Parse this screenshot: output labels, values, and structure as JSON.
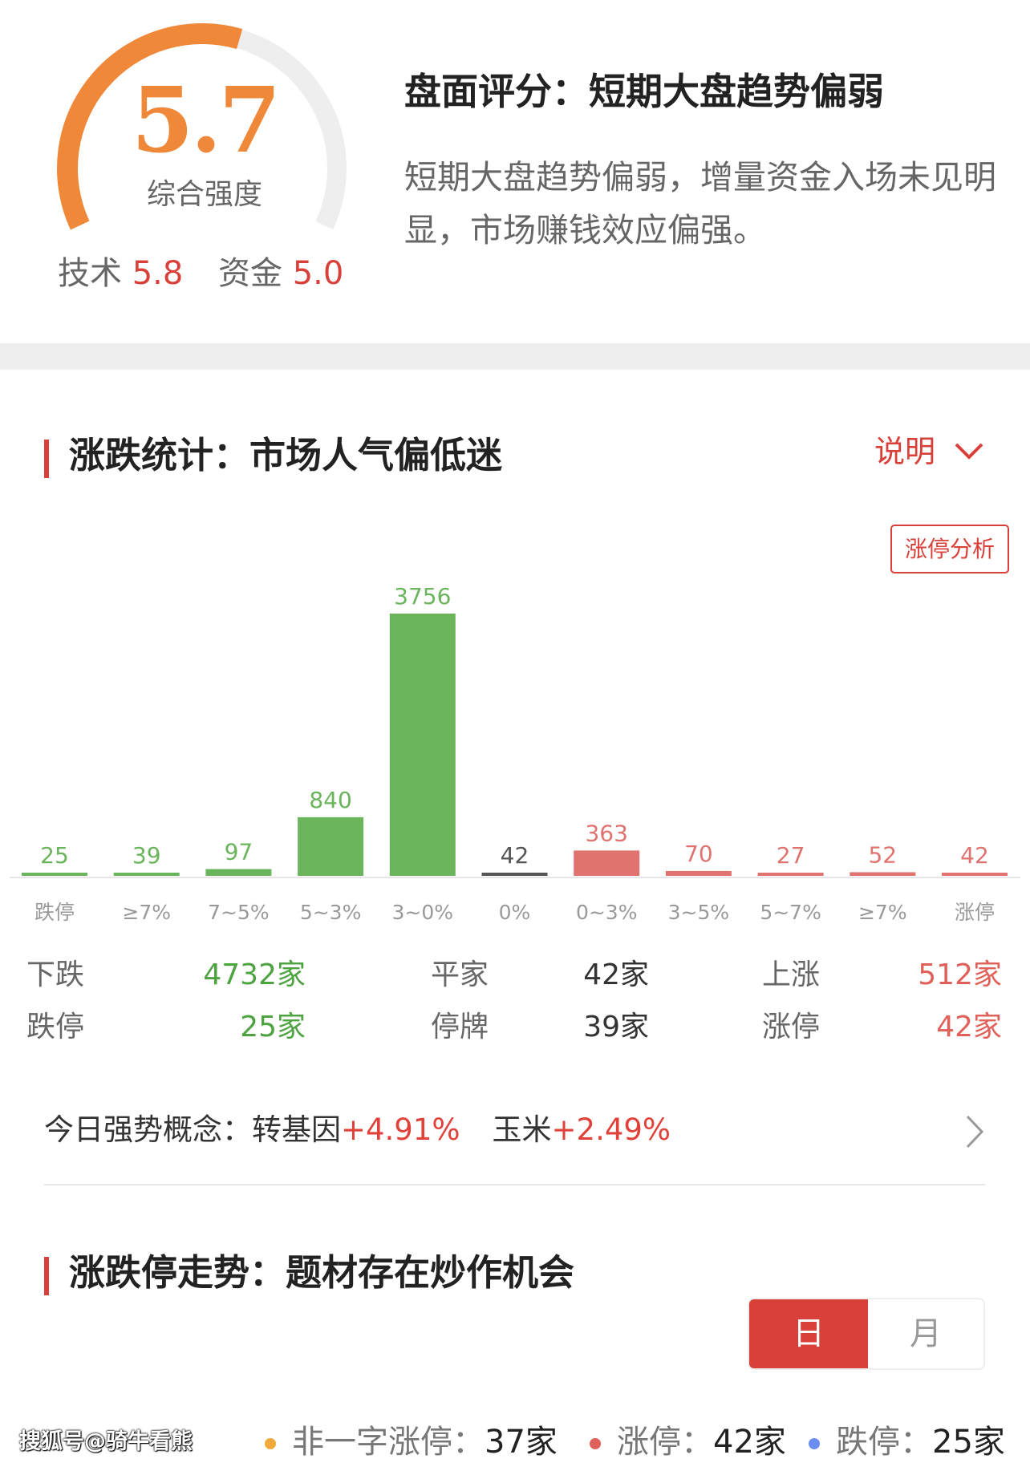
{
  "score": {
    "value": "5.7",
    "label": "综合强度",
    "level": 5.7,
    "max": 10,
    "tech_label": "技术",
    "tech_value": "5.8",
    "fund_label": "资金",
    "fund_value": "5.0",
    "arc_color": "#f0883a",
    "track_color": "#eeeeee"
  },
  "summary": {
    "title": "盘面评分：短期大盘趋势偏弱",
    "description": "短期大盘趋势偏弱，增量资金入场未见明显，市场赚钱效应偏强。"
  },
  "section1": {
    "title": "涨跌统计：市场人气偏低迷",
    "explain_label": "说明",
    "limit_analysis_label": "涨停分析"
  },
  "chart_data": {
    "type": "bar",
    "categories": [
      "跌停",
      "≥7%",
      "7~5%",
      "5~3%",
      "3~0%",
      "0%",
      "0~3%",
      "3~5%",
      "5~7%",
      "≥7%",
      "涨停"
    ],
    "values": [
      25,
      39,
      97,
      840,
      3756,
      42,
      363,
      70,
      27,
      52,
      42
    ],
    "colors": [
      "#6ab55b",
      "#6ab55b",
      "#6ab55b",
      "#6ab55b",
      "#6ab55b",
      "#555555",
      "#e07370",
      "#e07370",
      "#e07370",
      "#e07370",
      "#e07370"
    ],
    "grid": false
  },
  "stats": [
    {
      "label": "下跌",
      "value": "4732家",
      "color": "#4ea341"
    },
    {
      "label": "平家",
      "value": "42家",
      "color": "#333333"
    },
    {
      "label": "上涨",
      "value": "512家",
      "color": "#e0605a"
    },
    {
      "label": "跌停",
      "value": "25家",
      "color": "#4ea341"
    },
    {
      "label": "停牌",
      "value": "39家",
      "color": "#333333"
    },
    {
      "label": "涨停",
      "value": "42家",
      "color": "#e0605a"
    }
  ],
  "concepts": {
    "label": "今日强势概念：",
    "items": [
      {
        "name": "转基因",
        "change": "+4.91%"
      },
      {
        "name": "玉米",
        "change": "+2.49%"
      }
    ]
  },
  "section2": {
    "title": "涨跌停走势：题材存在炒作机会",
    "tabs": [
      {
        "label": "日",
        "active": true
      },
      {
        "label": "月",
        "active": false
      }
    ]
  },
  "legend": [
    {
      "label": "非一字涨停：",
      "value": "37家",
      "color": "#f2a93b"
    },
    {
      "label": "涨停：",
      "value": "42家",
      "color": "#e0605a"
    },
    {
      "label": "跌停：",
      "value": "25家",
      "color": "#6b8cf0"
    }
  ],
  "watermark": "搜狐号@骑牛看熊"
}
